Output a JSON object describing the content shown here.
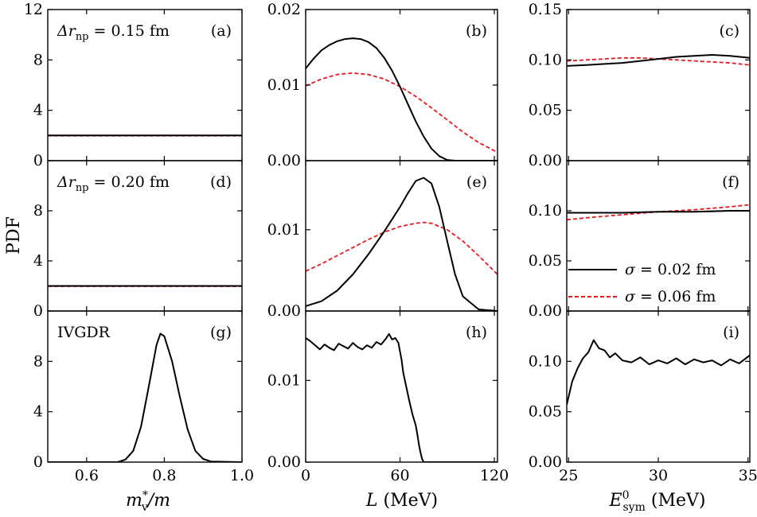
{
  "figure_title": "",
  "chart_data": {
    "type": "line",
    "layout": "3x3 grid",
    "shared_ylabel": "PDF",
    "legend": {
      "placement": "bottom-right of panel (f)",
      "entries": [
        {
          "series": "s02",
          "label": "σ = 0.02 fm",
          "color": "#000000",
          "style": "solid"
        },
        {
          "series": "s06",
          "label": "σ = 0.06 fm",
          "color": "#e8191c",
          "style": "dashed"
        }
      ]
    },
    "columns": [
      {
        "xlabel": "m*v/m",
        "xlabel_main": "m",
        "xlabel_sup": "*",
        "xlabel_sub": "v",
        "xlabel_rest": "/m",
        "xlim": [
          0.5,
          1.0
        ],
        "xticks": [
          0.6,
          0.8,
          1.0
        ],
        "xticklabels": [
          "0.6",
          "0.8",
          "1.0"
        ]
      },
      {
        "xlabel": "L (MeV)",
        "xlabel_main": "L",
        "xlabel_rest": "(MeV)",
        "xlim": [
          0,
          122
        ],
        "xticks": [
          0,
          60,
          120
        ],
        "xticklabels": [
          "0",
          "60",
          "120"
        ]
      },
      {
        "xlabel": "E0sym (MeV)",
        "xlabel_main": "E",
        "xlabel_sup": "0",
        "xlabel_sub": "sym",
        "xlabel_rest": "(MeV)",
        "xlim": [
          24.9,
          35.1
        ],
        "xticks": [
          25,
          30,
          35
        ],
        "xticklabels": [
          "25",
          "30",
          "35"
        ]
      }
    ],
    "panels": [
      {
        "id": "a",
        "label": "(a)",
        "row": 0,
        "col": 0,
        "annotation": "Δr_np = 0.15 fm",
        "ylim": [
          0,
          12
        ],
        "yticks": [
          0,
          4,
          8,
          12
        ],
        "yticklabels": [
          "0",
          "4",
          "8",
          "12"
        ],
        "series": [
          {
            "name": "s02",
            "x": [
              0.5,
              1.0
            ],
            "y": [
              2.0,
              2.0
            ]
          },
          {
            "name": "s06",
            "x": [
              0.5,
              1.0
            ],
            "y": [
              1.98,
              1.98
            ]
          }
        ]
      },
      {
        "id": "b",
        "label": "(b)",
        "row": 0,
        "col": 1,
        "annotation": "",
        "ylim": [
          0,
          0.02
        ],
        "yticks": [
          0,
          0.01,
          0.02
        ],
        "yticklabels": [
          "0.00",
          "0.01",
          "0.02"
        ],
        "series": [
          {
            "name": "s02",
            "x": [
              0,
              5,
              10,
              15,
              20,
              25,
              30,
              35,
              40,
              45,
              50,
              55,
              60,
              65,
              70,
              75,
              80,
              85,
              90,
              95,
              100,
              110,
              122
            ],
            "y": [
              0.0122,
              0.0135,
              0.0146,
              0.0153,
              0.0158,
              0.0161,
              0.0162,
              0.0161,
              0.0157,
              0.0149,
              0.0136,
              0.0119,
              0.0098,
              0.0075,
              0.0052,
              0.0032,
              0.0016,
              0.0006,
              0.0001,
              0.0,
              0.0,
              0.0,
              0.0
            ]
          },
          {
            "name": "s06",
            "x": [
              0,
              10,
              20,
              30,
              40,
              50,
              60,
              70,
              80,
              90,
              100,
              110,
              122
            ],
            "y": [
              0.0099,
              0.0108,
              0.0114,
              0.0116,
              0.0114,
              0.0108,
              0.0098,
              0.0085,
              0.007,
              0.0054,
              0.0038,
              0.0024,
              0.0011
            ]
          }
        ]
      },
      {
        "id": "c",
        "label": "(c)",
        "row": 0,
        "col": 2,
        "annotation": "",
        "ylim": [
          0,
          0.15
        ],
        "yticks": [
          0,
          0.05,
          0.1,
          0.15
        ],
        "yticklabels": [
          "0.00",
          "0.05",
          "0.10",
          "0.15"
        ],
        "series": [
          {
            "name": "s02",
            "x": [
              24.9,
              26,
              27,
              28,
              29,
              30,
              31,
              32,
              33,
              34,
              35.1
            ],
            "y": [
              0.094,
              0.095,
              0.096,
              0.097,
              0.099,
              0.101,
              0.103,
              0.104,
              0.105,
              0.104,
              0.102
            ]
          },
          {
            "name": "s06",
            "x": [
              24.9,
              26,
              27,
              28,
              29,
              30,
              31,
              32,
              33,
              34,
              35.1
            ],
            "y": [
              0.099,
              0.1,
              0.101,
              0.102,
              0.102,
              0.101,
              0.1,
              0.099,
              0.098,
              0.097,
              0.095
            ]
          }
        ]
      },
      {
        "id": "d",
        "label": "(d)",
        "row": 1,
        "col": 0,
        "annotation": "Δr_np = 0.20 fm",
        "ylim": [
          0,
          12
        ],
        "yticks": [
          0,
          4,
          8
        ],
        "yticklabels": [
          "0",
          "4",
          "8"
        ],
        "series": [
          {
            "name": "s02",
            "x": [
              0.5,
              1.0
            ],
            "y": [
              2.0,
              2.0
            ]
          },
          {
            "name": "s06",
            "x": [
              0.5,
              1.0
            ],
            "y": [
              1.97,
              1.97
            ]
          }
        ]
      },
      {
        "id": "e",
        "label": "(e)",
        "row": 1,
        "col": 1,
        "annotation": "",
        "ylim": [
          0,
          0.0185
        ],
        "yticks": [
          0,
          0.01
        ],
        "yticklabels": [
          "0.00",
          "0.01"
        ],
        "series": [
          {
            "name": "s02",
            "x": [
              0,
              10,
              20,
              30,
              40,
              50,
              60,
              65,
              70,
              75,
              80,
              85,
              90,
              95,
              100,
              110,
              122
            ],
            "y": [
              0.0006,
              0.0012,
              0.0025,
              0.0045,
              0.007,
              0.0098,
              0.0128,
              0.0145,
              0.016,
              0.0164,
              0.0157,
              0.0128,
              0.0086,
              0.0045,
              0.0018,
              0.0002,
              0.0
            ]
          },
          {
            "name": "s06",
            "x": [
              0,
              10,
              20,
              30,
              40,
              50,
              60,
              70,
              75,
              80,
              90,
              100,
              110,
              122
            ],
            "y": [
              0.0049,
              0.0058,
              0.0068,
              0.0078,
              0.0088,
              0.0097,
              0.0104,
              0.0108,
              0.0109,
              0.0108,
              0.01,
              0.0086,
              0.0068,
              0.0045
            ]
          }
        ]
      },
      {
        "id": "f",
        "label": "(f)",
        "row": 1,
        "col": 2,
        "annotation": "",
        "ylim": [
          0,
          0.15
        ],
        "yticks": [
          0,
          0.05,
          0.1
        ],
        "yticklabels": [
          "0.00",
          "0.05",
          "0.10"
        ],
        "series": [
          {
            "name": "s02",
            "x": [
              24.9,
              26,
              28,
              30,
              32,
              34,
              35.1
            ],
            "y": [
              0.098,
              0.098,
              0.098,
              0.099,
              0.099,
              0.1,
              0.1
            ]
          },
          {
            "name": "s06",
            "x": [
              24.9,
              26,
              28,
              30,
              32,
              34,
              35.1
            ],
            "y": [
              0.091,
              0.093,
              0.096,
              0.099,
              0.101,
              0.104,
              0.106
            ]
          }
        ]
      },
      {
        "id": "g",
        "label": "(g)",
        "row": 2,
        "col": 0,
        "annotation": "IVGDR",
        "ylim": [
          0,
          12
        ],
        "yticks": [
          0,
          4,
          8
        ],
        "yticklabels": [
          "0",
          "4",
          "8"
        ],
        "series": [
          {
            "name": "s02",
            "x": [
              0.5,
              0.68,
              0.7,
              0.72,
              0.74,
              0.76,
              0.78,
              0.79,
              0.8,
              0.82,
              0.84,
              0.86,
              0.88,
              0.9,
              0.92,
              1.0
            ],
            "y": [
              0,
              0,
              0.2,
              0.9,
              2.8,
              6.0,
              9.3,
              10.2,
              10.0,
              8.0,
              5.2,
              2.6,
              0.9,
              0.25,
              0.05,
              0
            ]
          }
        ]
      },
      {
        "id": "h",
        "label": "(h)",
        "row": 2,
        "col": 1,
        "annotation": "",
        "ylim": [
          0,
          0.0185
        ],
        "yticks": [
          0,
          0.01
        ],
        "yticklabels": [
          "0.00",
          "0.01"
        ],
        "series": [
          {
            "name": "s02",
            "x": [
              0,
              3,
              6,
              9,
              12,
              15,
              18,
              21,
              24,
              27,
              30,
              33,
              36,
              39,
              42,
              45,
              48,
              51,
              53,
              55,
              57,
              59,
              61,
              62,
              64,
              66,
              68,
              70,
              71,
              72,
              73,
              74,
              75,
              122
            ],
            "y": [
              0.0152,
              0.0148,
              0.0143,
              0.0138,
              0.0144,
              0.014,
              0.0137,
              0.0145,
              0.0142,
              0.0139,
              0.0146,
              0.0141,
              0.0138,
              0.0143,
              0.014,
              0.0147,
              0.0144,
              0.0151,
              0.0157,
              0.015,
              0.0152,
              0.0146,
              0.0125,
              0.011,
              0.0092,
              0.0074,
              0.0058,
              0.0045,
              0.0034,
              0.0022,
              0.0012,
              0.0004,
              0.0,
              0.0
            ]
          }
        ]
      },
      {
        "id": "i",
        "label": "(i)",
        "row": 2,
        "col": 2,
        "annotation": "",
        "ylim": [
          0,
          0.15
        ],
        "yticks": [
          0,
          0.05,
          0.1
        ],
        "yticklabels": [
          "0.00",
          "0.05",
          "0.10"
        ],
        "series": [
          {
            "name": "s02",
            "x": [
              24.9,
              25.2,
              25.5,
              25.8,
              26.1,
              26.4,
              26.7,
              27.0,
              27.3,
              27.6,
              28.0,
              28.5,
              29.0,
              29.5,
              30.0,
              30.5,
              31.0,
              31.5,
              32.0,
              32.5,
              33.0,
              33.5,
              34.0,
              34.5,
              35.1
            ],
            "y": [
              0.057,
              0.08,
              0.093,
              0.103,
              0.109,
              0.121,
              0.113,
              0.111,
              0.104,
              0.108,
              0.101,
              0.099,
              0.104,
              0.097,
              0.101,
              0.098,
              0.103,
              0.097,
              0.102,
              0.099,
              0.101,
              0.096,
              0.102,
              0.098,
              0.106
            ]
          }
        ]
      }
    ]
  }
}
